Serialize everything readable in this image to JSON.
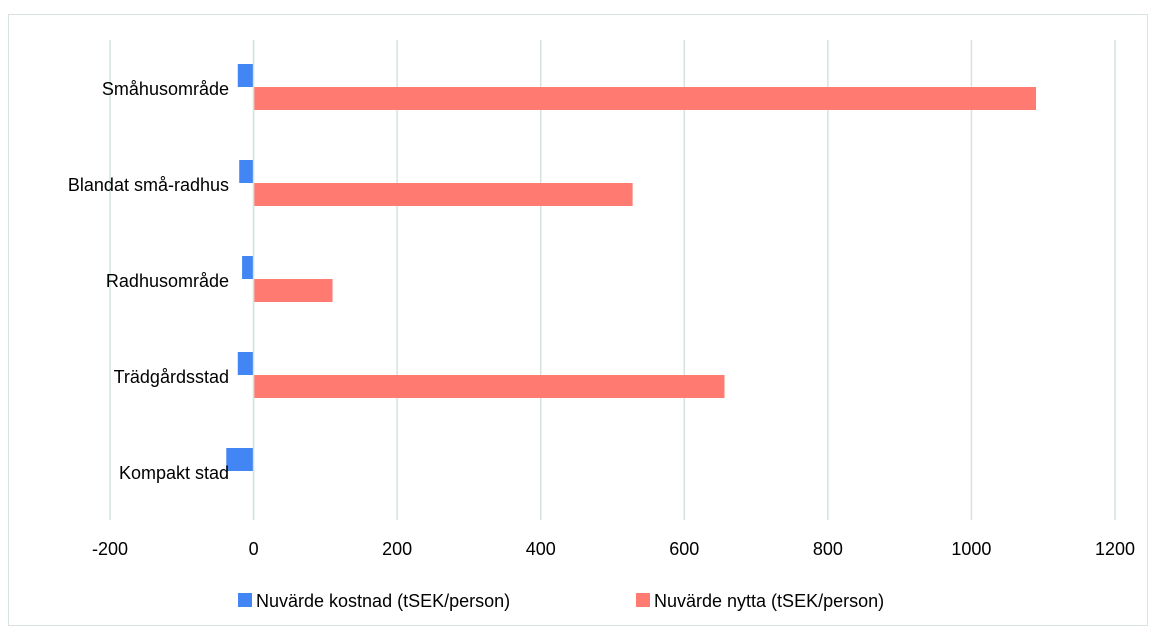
{
  "chart_data": {
    "type": "bar",
    "orientation": "horizontal",
    "categories": [
      "Småhusområde",
      "Blandat små-radhus",
      "Radhusområde",
      "Trädgårdsstad",
      "Kompakt stad"
    ],
    "series": [
      {
        "name": "Nuvärde kostnad (tSEK/person)",
        "color": "#4285f4",
        "values": [
          -22,
          -20,
          -16,
          -22,
          -38
        ]
      },
      {
        "name": "Nuvärde nytta (tSEK/person)",
        "color": "#ff7b72",
        "values": [
          1090,
          528,
          110,
          656,
          0
        ]
      }
    ],
    "x_ticks": [
      "-200",
      "0",
      "200",
      "400",
      "600",
      "800",
      "1000",
      "1200"
    ],
    "xlim": [
      -200,
      1200
    ],
    "grid": true,
    "legend_position": "bottom"
  }
}
